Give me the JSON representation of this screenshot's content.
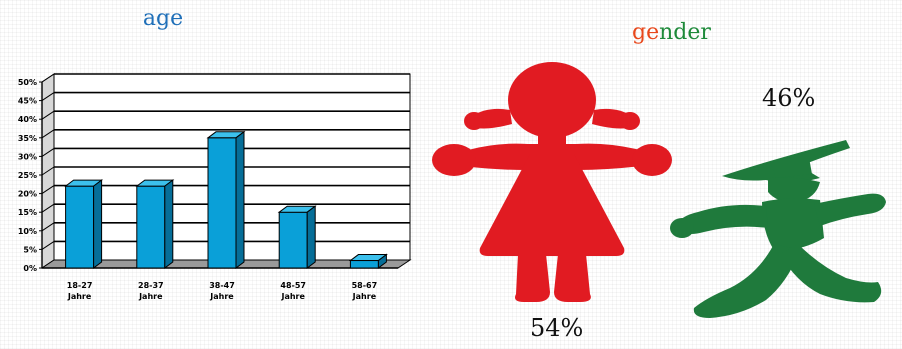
{
  "chart_data": [
    {
      "type": "bar",
      "title": "age",
      "categories": [
        [
          "18-27",
          "Jahre"
        ],
        [
          "28-37",
          "Jahre"
        ],
        [
          "38-47",
          "Jahre"
        ],
        [
          "48-57",
          "Jahre"
        ],
        [
          "58-67",
          "Jahre"
        ]
      ],
      "values": [
        22,
        22,
        35,
        15,
        2
      ],
      "ylim": [
        0,
        50
      ],
      "yticks": [
        "0%",
        "5%",
        "10%",
        "15%",
        "20%",
        "25%",
        "30%",
        "35%",
        "40%",
        "45%",
        "50%"
      ],
      "grid": true,
      "bar_color": "#0aa0d8"
    },
    {
      "type": "pie",
      "title_parts": [
        "ge",
        "nder"
      ],
      "female_label": "54%",
      "male_label": "46%",
      "female_color": "#e11b22",
      "male_color": "#1f7a3c"
    }
  ]
}
